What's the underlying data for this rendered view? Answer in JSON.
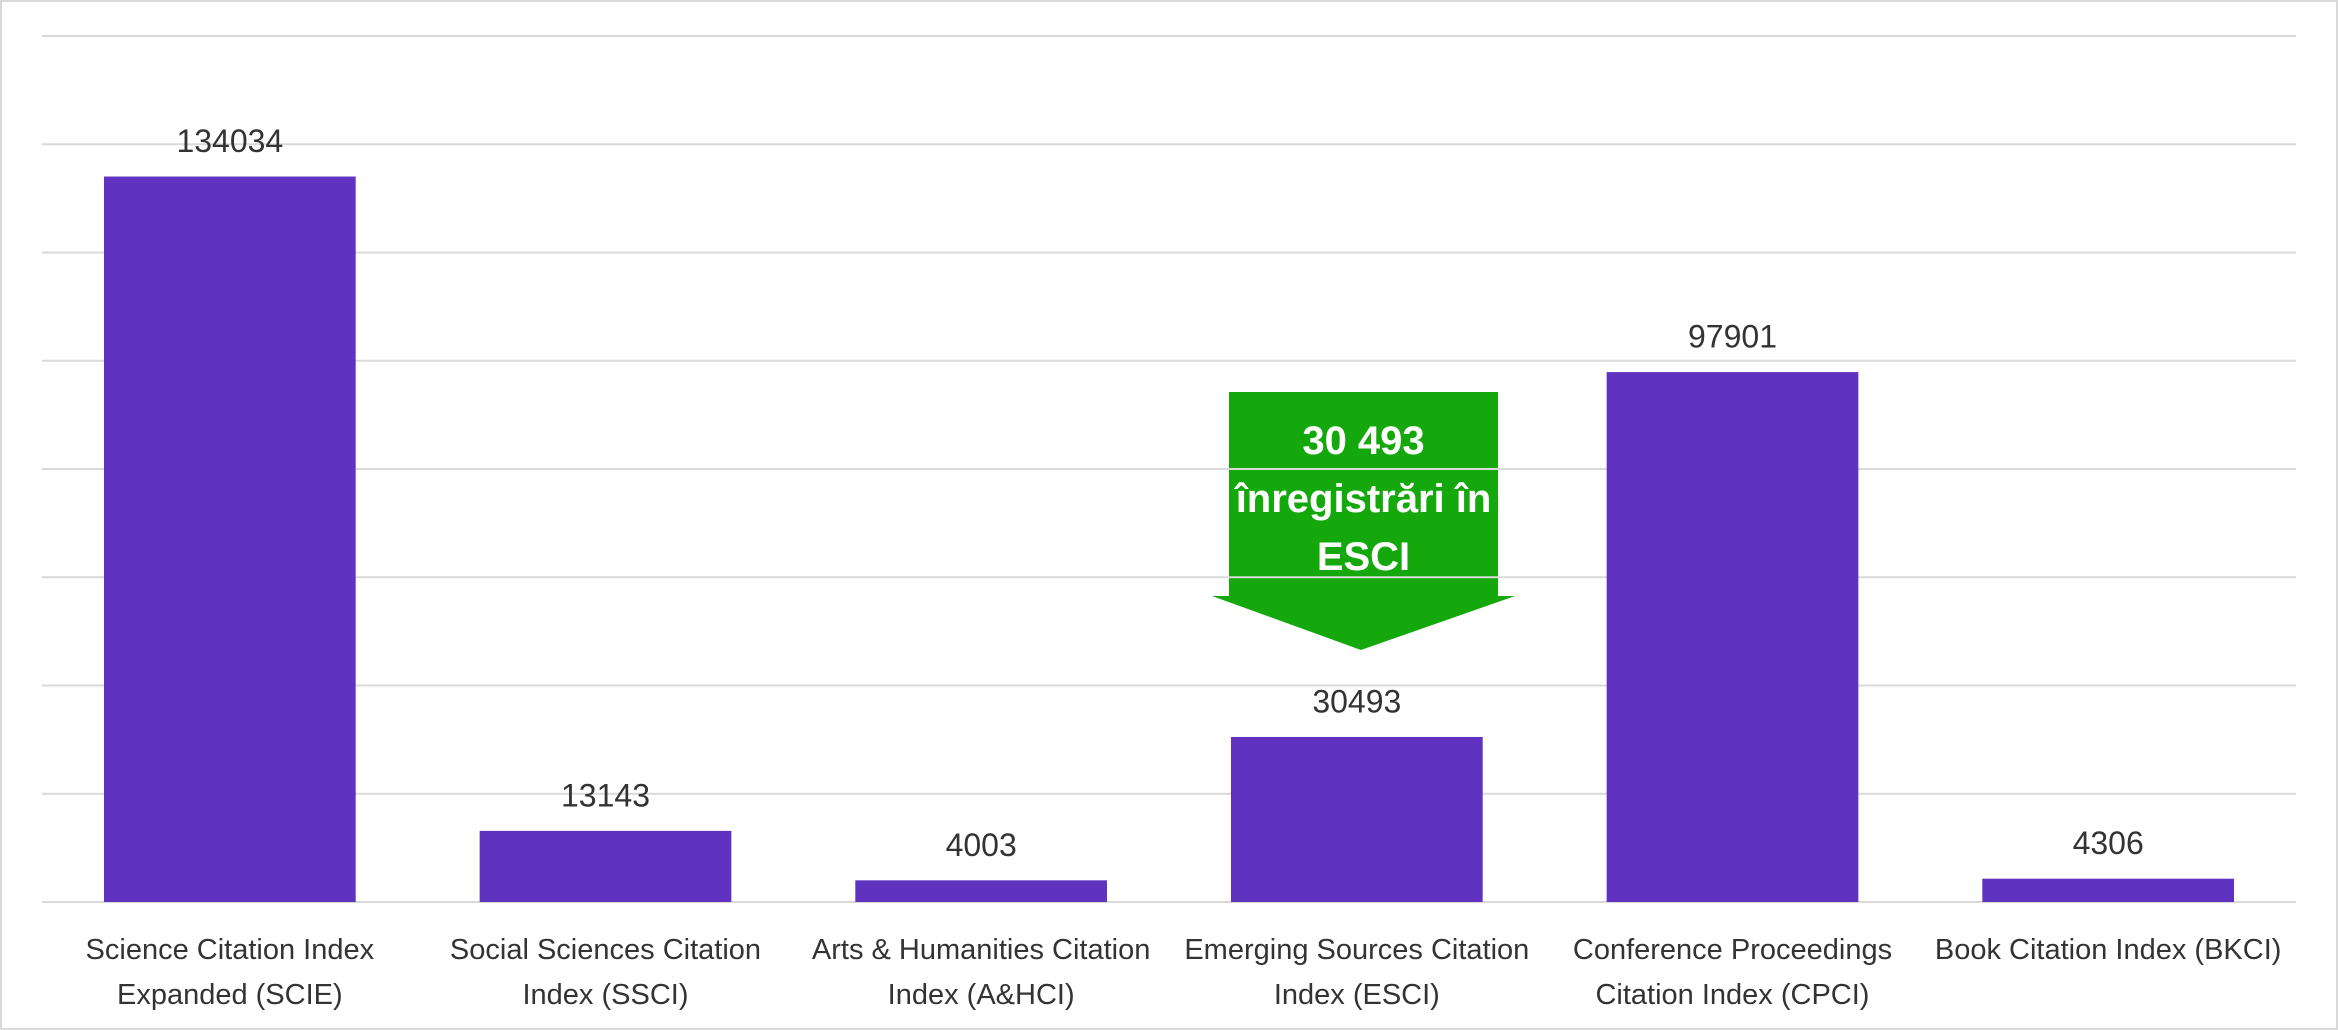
{
  "chart_data": {
    "type": "bar",
    "categories": [
      "Science Citation Index Expanded (SCIE)",
      "Social Sciences Citation Index (SSCI)",
      "Arts & Humanities Citation Index (A&HCI)",
      "Emerging Sources Citation Index (ESCI)",
      "Conference Proceedings Citation Index (CPCI)",
      "Book Citation Index (BKCI)"
    ],
    "values": [
      134034,
      13143,
      4003,
      30493,
      97901,
      4306
    ],
    "color": "#5f32bf",
    "ylim": [
      0,
      160000
    ],
    "yticks": [
      0,
      20000,
      40000,
      60000,
      80000,
      100000,
      120000,
      140000,
      160000
    ],
    "grid": true,
    "annotation": "30 493 înregistrări în ESCI",
    "annotation_color": "#14a80d"
  }
}
